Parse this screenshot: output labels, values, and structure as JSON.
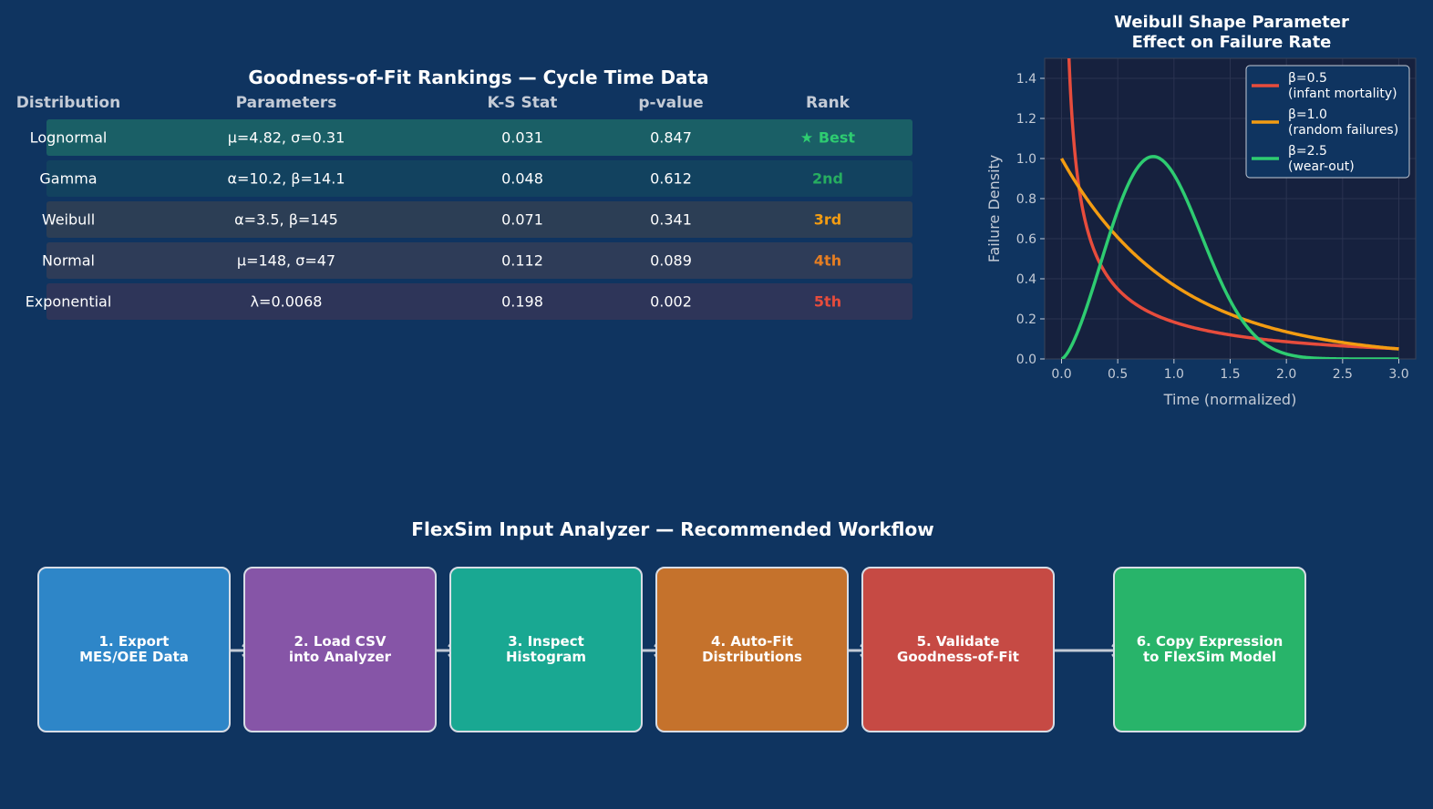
{
  "table": {
    "title": "Goodness-of-Fit Rankings — Cycle Time Data",
    "headers": [
      "Distribution",
      "Parameters",
      "K-S Stat",
      "p-value",
      "Rank"
    ],
    "rows": [
      {
        "distribution": "Lognormal",
        "parameters": "μ=4.82, σ=0.31",
        "ks": "0.031",
        "p": "0.847",
        "rank": "★ Best",
        "bg": "#1a5f66",
        "rank_color": "#2ecc71"
      },
      {
        "distribution": "Gamma",
        "parameters": "α=10.2, β=14.1",
        "ks": "0.048",
        "p": "0.612",
        "rank": "2nd",
        "bg": "#12425f",
        "rank_color": "#27ae60"
      },
      {
        "distribution": "Weibull",
        "parameters": "α=3.5, β=145",
        "ks": "0.071",
        "p": "0.341",
        "rank": "3rd",
        "bg": "#2c3e55",
        "rank_color": "#f39c12"
      },
      {
        "distribution": "Normal",
        "parameters": "μ=148, σ=47",
        "ks": "0.112",
        "p": "0.089",
        "rank": "4th",
        "bg": "#2e3c58",
        "rank_color": "#e67e22"
      },
      {
        "distribution": "Exponential",
        "parameters": "λ=0.0068",
        "ks": "0.198",
        "p": "0.002",
        "rank": "5th",
        "bg": "#2e3559",
        "rank_color": "#e74c3c"
      }
    ]
  },
  "chart_data": {
    "type": "line",
    "title": "Weibull Shape Parameter\nEffect on Failure Rate",
    "title_lines": [
      "Weibull Shape Parameter",
      "Effect on Failure Rate"
    ],
    "xlabel": "Time (normalized)",
    "ylabel": "Failure Density",
    "xlim": [
      -0.15,
      3.15
    ],
    "ylim": [
      0,
      1.5
    ],
    "xticks": [
      0.0,
      0.5,
      1.0,
      1.5,
      2.0,
      2.5,
      3.0
    ],
    "yticks": [
      0.0,
      0.2,
      0.4,
      0.6,
      0.8,
      1.0,
      1.2,
      1.4
    ],
    "grid": true,
    "legend_position": "top-right",
    "series": [
      {
        "name": "β=0.5\n(infant mortality)",
        "legend_lines": [
          "β=0.5",
          "(infant mortality)"
        ],
        "beta": 0.5,
        "color": "#e74c3c",
        "x": [
          0.05,
          0.1,
          0.2,
          0.3,
          0.5,
          0.75,
          1.0,
          1.5,
          2.0,
          2.5,
          3.0
        ],
        "y": [
          1.8,
          1.15,
          0.72,
          0.53,
          0.35,
          0.24,
          0.18,
          0.12,
          0.085,
          0.065,
          0.05
        ]
      },
      {
        "name": "β=1.0\n(random failures)",
        "legend_lines": [
          "β=1.0",
          "(random failures)"
        ],
        "beta": 1.0,
        "color": "#f39c12",
        "x": [
          0.0,
          0.25,
          0.5,
          0.75,
          1.0,
          1.5,
          2.0,
          2.5,
          3.0
        ],
        "y": [
          1.0,
          0.78,
          0.61,
          0.47,
          0.37,
          0.22,
          0.14,
          0.08,
          0.05
        ]
      },
      {
        "name": "β=2.5\n(wear-out)",
        "legend_lines": [
          "β=2.5",
          "(wear-out)"
        ],
        "beta": 2.5,
        "color": "#2ecc71",
        "x": [
          0.0,
          0.25,
          0.5,
          0.75,
          0.85,
          1.0,
          1.25,
          1.5,
          1.75,
          2.0,
          2.5,
          3.0
        ],
        "y": [
          0.0,
          0.16,
          0.59,
          0.98,
          1.01,
          0.92,
          0.56,
          0.22,
          0.06,
          0.01,
          0.0,
          0.0
        ]
      }
    ]
  },
  "workflow": {
    "title": "FlexSim Input Analyzer — Recommended Workflow",
    "steps": [
      {
        "label": "1. Export\nMES/OEE Data",
        "color": "#2e86c8"
      },
      {
        "label": "2. Load CSV\ninto Analyzer",
        "color": "#8655a7"
      },
      {
        "label": "3. Inspect\nHistogram",
        "color": "#19a892"
      },
      {
        "label": "4. Auto-Fit\nDistributions",
        "color": "#c5722c"
      },
      {
        "label": "5. Validate\nGoodness-of-Fit",
        "color": "#c64a44"
      },
      {
        "label": "6. Copy Expression\nto FlexSim Model",
        "color": "#28b46a"
      }
    ]
  }
}
